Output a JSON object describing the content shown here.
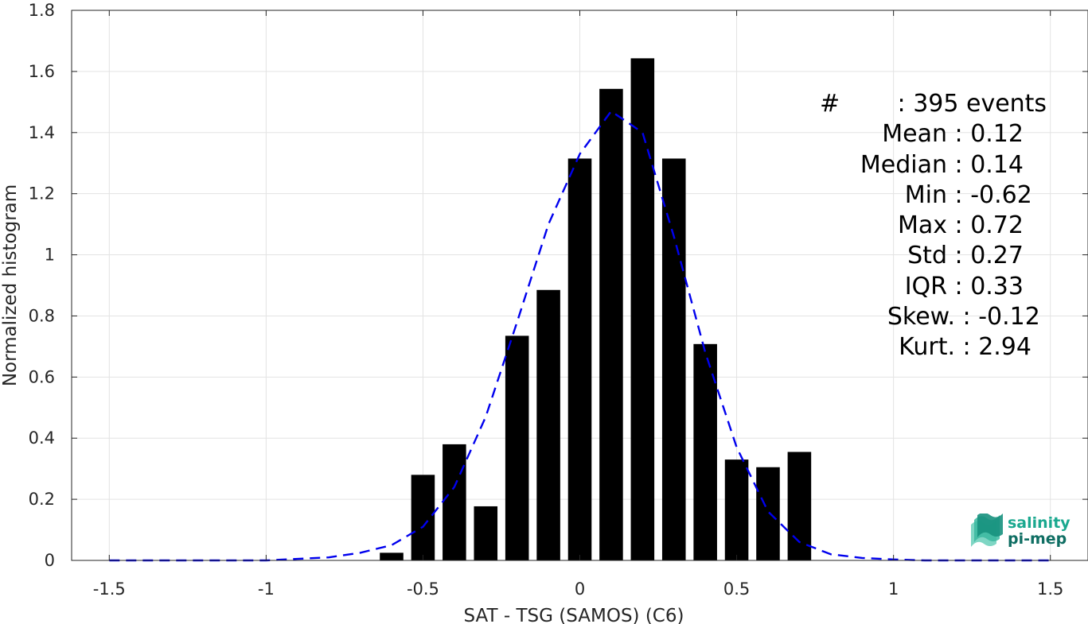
{
  "chart_data": {
    "type": "bar",
    "xlabel": "SAT - TSG (SAMOS) (C6)",
    "ylabel": "Normalized histogram",
    "xlim": [
      -1.62,
      1.62
    ],
    "ylim": [
      0,
      1.8
    ],
    "xticks": [
      -1.5,
      -1,
      -0.5,
      0,
      0.5,
      1,
      1.5
    ],
    "xtick_labels": [
      "-1.5",
      "-1",
      "-0.5",
      "0",
      "0.5",
      "1",
      "1.5"
    ],
    "yticks": [
      0,
      0.2,
      0.4,
      0.6,
      0.8,
      1,
      1.2,
      1.4,
      1.6,
      1.8
    ],
    "ytick_labels": [
      "0",
      "0.2",
      "0.4",
      "0.6",
      "0.8",
      "1",
      "1.2",
      "1.4",
      "1.6",
      "1.8"
    ],
    "grid": true,
    "bar_width": 0.075,
    "bars": {
      "x": [
        -0.6,
        -0.5,
        -0.4,
        -0.3,
        -0.2,
        -0.1,
        0.0,
        0.1,
        0.2,
        0.3,
        0.4,
        0.5,
        0.6,
        0.7
      ],
      "values": [
        0.025,
        0.28,
        0.38,
        0.177,
        0.735,
        0.885,
        1.315,
        1.543,
        1.643,
        1.315,
        0.708,
        0.33,
        0.305,
        0.355
      ],
      "color": "#000000"
    },
    "fit_curve": {
      "style": "dashed",
      "color": "#0000ee",
      "x": [
        -1.5,
        -1.4,
        -1.3,
        -1.2,
        -1.1,
        -1.0,
        -0.9,
        -0.8,
        -0.7,
        -0.6,
        -0.5,
        -0.4,
        -0.3,
        -0.2,
        -0.1,
        0.0,
        0.1,
        0.2,
        0.3,
        0.4,
        0.5,
        0.6,
        0.7,
        0.8,
        0.9,
        1.0,
        1.1,
        1.2,
        1.3,
        1.4,
        1.5
      ],
      "y": [
        0.0,
        0.0,
        0.0,
        0.0,
        0.0,
        0.0,
        0.005,
        0.01,
        0.025,
        0.05,
        0.11,
        0.24,
        0.47,
        0.78,
        1.1,
        1.33,
        1.47,
        1.4,
        1.06,
        0.68,
        0.37,
        0.16,
        0.06,
        0.02,
        0.008,
        0.003,
        0.0,
        0.0,
        0.0,
        0.0,
        0.0
      ]
    }
  },
  "stats": [
    {
      "key": "#",
      "sep": " : ",
      "value": "395 events"
    },
    {
      "key": "Mean",
      "sep": " : ",
      "value": "0.12"
    },
    {
      "key": "Median",
      "sep": " : ",
      "value": "0.14"
    },
    {
      "key": "Min",
      "sep": " : ",
      "value": "-0.62"
    },
    {
      "key": "Max",
      "sep": " : ",
      "value": "0.72"
    },
    {
      "key": "Std",
      "sep": " : ",
      "value": "0.27"
    },
    {
      "key": "IQR",
      "sep": " : ",
      "value": "0.33"
    },
    {
      "key": "Skew.",
      "sep": " : ",
      "value": "-0.12"
    },
    {
      "key": "Kurt.",
      "sep": " : ",
      "value": "2.94"
    }
  ],
  "logo": {
    "line1": "salinity",
    "line2": "pi-mep",
    "color1": "#1aa88f",
    "color2": "#0f6e63"
  }
}
